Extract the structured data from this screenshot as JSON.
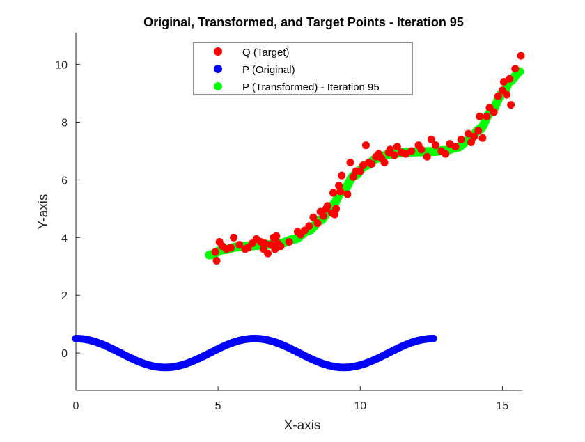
{
  "chart_data": {
    "type": "scatter",
    "title": "Original, Transformed, and Target Points - Iteration 95",
    "xlabel": "X-axis",
    "ylabel": "Y-axis",
    "xlim": [
      0,
      15.7
    ],
    "ylim": [
      -1.3,
      11.1
    ],
    "xticks": [
      0,
      5,
      10,
      15
    ],
    "yticks": [
      0,
      2,
      4,
      6,
      8,
      10
    ],
    "grid": false,
    "legend_position": "top-center",
    "series": [
      {
        "name": "Q (Target)",
        "color": "#ff0000",
        "x": [
          4.9,
          4.95,
          5.05,
          5.15,
          5.3,
          5.45,
          5.55,
          5.75,
          5.95,
          6.05,
          6.2,
          6.35,
          6.5,
          6.6,
          6.65,
          6.75,
          6.85,
          6.95,
          7.0,
          7.05,
          7.1,
          7.2,
          7.5,
          7.8,
          7.9,
          8.05,
          8.2,
          8.35,
          8.5,
          8.6,
          8.7,
          8.8,
          8.85,
          9.0,
          9.05,
          9.1,
          9.15,
          9.25,
          9.3,
          9.35,
          9.55,
          9.65,
          9.75,
          9.85,
          10.0,
          10.1,
          10.2,
          10.3,
          10.4,
          10.55,
          10.65,
          10.75,
          10.85,
          11.0,
          11.05,
          11.2,
          11.3,
          11.45,
          11.6,
          11.8,
          12.05,
          12.15,
          12.35,
          12.5,
          12.65,
          12.85,
          13.0,
          13.15,
          13.35,
          13.55,
          13.8,
          13.9,
          14.0,
          14.15,
          14.2,
          14.3,
          14.45,
          14.55,
          14.7,
          14.85,
          15.0,
          15.05,
          15.15,
          15.25,
          15.3,
          15.45,
          15.65
        ],
        "y": [
          3.5,
          3.2,
          3.85,
          3.7,
          3.6,
          3.65,
          4.0,
          3.75,
          3.6,
          3.65,
          3.8,
          3.95,
          3.85,
          3.6,
          3.8,
          3.45,
          3.75,
          4.0,
          3.6,
          4.05,
          3.8,
          3.7,
          3.85,
          4.2,
          4.1,
          4.25,
          4.4,
          4.7,
          4.5,
          4.9,
          4.75,
          5.0,
          5.1,
          4.85,
          5.55,
          4.8,
          5.0,
          5.8,
          5.6,
          6.15,
          5.5,
          6.6,
          6.1,
          6.3,
          6.3,
          6.5,
          7.2,
          6.6,
          6.55,
          6.8,
          6.9,
          6.75,
          6.6,
          6.95,
          7.05,
          6.85,
          7.15,
          6.95,
          6.9,
          7.0,
          7.2,
          7.05,
          6.8,
          7.4,
          7.2,
          7.0,
          6.9,
          7.25,
          7.15,
          7.4,
          7.6,
          7.3,
          7.5,
          7.7,
          8.2,
          7.45,
          8.2,
          8.5,
          8.35,
          8.9,
          9.1,
          9.4,
          8.95,
          9.5,
          8.6,
          9.85,
          10.3
        ]
      },
      {
        "name": "P (Original)",
        "color": "#0000ff",
        "curve": "y = 0.5*cos(x)",
        "x_range": [
          0,
          12.57
        ]
      },
      {
        "name": "P (Transformed) - Iteration 95",
        "color": "#00ff00",
        "x_range": [
          4.7,
          15.6
        ],
        "x": [
          4.7,
          5.2,
          5.7,
          6.2,
          6.7,
          7.2,
          7.7,
          8.2,
          8.6,
          9.0,
          9.4,
          9.8,
          10.2,
          10.6,
          11.0,
          11.5,
          12.0,
          12.5,
          13.0,
          13.4,
          13.8,
          14.2,
          14.6,
          15.0,
          15.3,
          15.6
        ],
        "y": [
          3.4,
          3.58,
          3.68,
          3.72,
          3.75,
          3.8,
          3.95,
          4.25,
          4.6,
          5.1,
          5.65,
          6.15,
          6.5,
          6.75,
          6.88,
          6.95,
          6.97,
          6.98,
          7.02,
          7.12,
          7.35,
          7.75,
          8.35,
          9.0,
          9.45,
          9.75
        ]
      }
    ]
  }
}
